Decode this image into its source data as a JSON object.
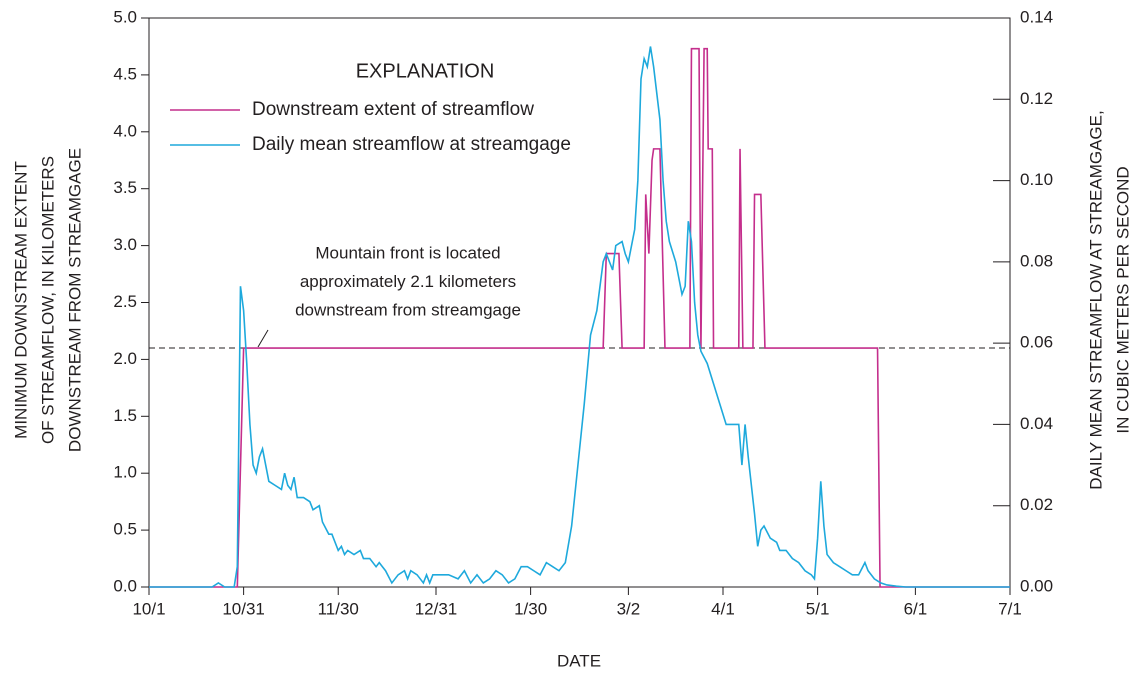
{
  "chart_data": {
    "type": "line",
    "x_label": "DATE",
    "y_label": [
      "MINIMUM DOWNSTREAM EXTENT",
      "OF STREAMFLOW, IN KILOMETERS",
      "DOWNSTREAM FROM STREAMGAGE"
    ],
    "y2_label": [
      "DAILY MEAN STREAMFLOW AT STREAMGAGE,",
      "IN CUBIC METERS PER SECOND"
    ],
    "legend_title": "EXPLANATION",
    "annotation": [
      "Mountain front is located",
      "approximately 2.1 kilometers",
      "downstream from streamgage"
    ],
    "reference_line": 2.1,
    "xlim": [
      0,
      273
    ],
    "xticks": [
      {
        "value": 0,
        "label": "10/1"
      },
      {
        "value": 30,
        "label": "10/31"
      },
      {
        "value": 60,
        "label": "11/30"
      },
      {
        "value": 91,
        "label": "12/31"
      },
      {
        "value": 121,
        "label": "1/30"
      },
      {
        "value": 152,
        "label": "3/2"
      },
      {
        "value": 182,
        "label": "4/1"
      },
      {
        "value": 212,
        "label": "5/1"
      },
      {
        "value": 243,
        "label": "6/1"
      },
      {
        "value": 273,
        "label": "7/1"
      }
    ],
    "ylim": [
      0,
      5
    ],
    "yticks": [
      {
        "value": 0,
        "label": "0.0"
      },
      0.5,
      {
        "value": 1,
        "label": "1.0"
      },
      1.5,
      {
        "value": 2,
        "label": "2.0"
      },
      2.5,
      {
        "value": 3,
        "label": "3.0"
      },
      3.5,
      {
        "value": 4,
        "label": "4.0"
      },
      4.5,
      {
        "value": 5,
        "label": "5.0"
      }
    ],
    "y2lim": [
      0,
      0.14
    ],
    "y2ticks": [
      {
        "value": 0,
        "label": "0.00"
      },
      0.02,
      0.04,
      0.06,
      0.08,
      {
        "value": 0.1,
        "label": "0.10"
      },
      0.12,
      0.14
    ],
    "series": [
      {
        "name": "Downstream extent of streamflow",
        "color": "#c42e8c",
        "axis": "y",
        "x": [
          0,
          28,
          30,
          144,
          145,
          149,
          150,
          157,
          157.5,
          158.5,
          159.5,
          160,
          162,
          163.6,
          171.5,
          172,
          174.4,
          175,
          176,
          177,
          177.3,
          178.6,
          179,
          187,
          187.4,
          188.3,
          191.5,
          192,
          194,
          195.3,
          231,
          231.8,
          273
        ],
        "values": [
          0,
          0,
          2.1,
          2.1,
          2.93,
          2.93,
          2.1,
          2.1,
          3.45,
          2.93,
          3.75,
          3.85,
          3.85,
          2.1,
          2.1,
          4.73,
          4.73,
          2.1,
          4.73,
          4.73,
          3.85,
          3.85,
          2.1,
          2.1,
          3.85,
          2.1,
          2.1,
          3.45,
          3.45,
          2.1,
          2.1,
          0,
          0
        ]
      },
      {
        "name": "Daily mean streamflow at streamgage",
        "color": "#1ea9dc",
        "axis": "y2",
        "x": [
          0,
          20,
          22,
          24,
          27,
          28,
          29,
          30,
          31,
          32,
          33,
          34,
          35,
          36,
          37,
          38,
          40,
          42,
          43,
          44,
          45,
          46,
          47,
          49,
          51,
          52,
          54,
          55,
          57,
          58,
          59,
          60,
          61,
          62,
          63,
          65,
          67,
          68,
          70,
          72,
          73,
          75,
          77,
          79,
          81,
          82,
          83,
          85,
          87,
          88,
          89,
          90,
          92,
          95,
          98,
          100,
          102,
          104,
          106,
          108,
          110,
          112,
          114,
          116,
          118,
          120,
          122,
          124,
          126,
          128,
          130,
          132,
          134,
          136,
          138,
          140,
          142,
          144,
          145,
          147,
          148,
          150,
          151,
          152,
          154,
          155,
          156,
          157,
          158,
          159,
          160,
          162,
          163,
          164,
          165,
          167,
          168,
          169,
          170,
          171,
          172,
          173,
          174,
          175,
          177,
          179,
          181,
          183,
          185,
          187,
          188,
          189,
          190,
          192,
          193,
          194,
          195,
          197,
          199,
          200,
          202,
          204,
          206,
          208,
          210,
          211,
          212,
          213,
          214,
          215,
          217,
          219,
          221,
          223,
          225,
          227,
          228,
          230,
          232,
          234,
          237,
          240,
          273
        ],
        "values": [
          0,
          0,
          0.001,
          0,
          0,
          0.005,
          0.074,
          0.068,
          0.055,
          0.04,
          0.03,
          0.028,
          0.032,
          0.034,
          0.03,
          0.026,
          0.025,
          0.024,
          0.028,
          0.025,
          0.024,
          0.027,
          0.022,
          0.022,
          0.021,
          0.019,
          0.02,
          0.016,
          0.013,
          0.013,
          0.011,
          0.009,
          0.01,
          0.008,
          0.009,
          0.008,
          0.009,
          0.007,
          0.007,
          0.005,
          0.006,
          0.004,
          0.001,
          0.003,
          0.004,
          0.002,
          0.004,
          0.003,
          0.001,
          0.003,
          0.001,
          0.003,
          0.003,
          0.003,
          0.002,
          0.004,
          0.001,
          0.003,
          0.001,
          0.002,
          0.004,
          0.003,
          0.001,
          0.002,
          0.005,
          0.005,
          0.004,
          0.003,
          0.006,
          0.005,
          0.004,
          0.006,
          0.015,
          0.03,
          0.045,
          0.062,
          0.068,
          0.08,
          0.082,
          0.078,
          0.084,
          0.085,
          0.082,
          0.08,
          0.088,
          0.1,
          0.125,
          0.13,
          0.128,
          0.133,
          0.128,
          0.115,
          0.1,
          0.09,
          0.085,
          0.08,
          0.076,
          0.072,
          0.074,
          0.09,
          0.085,
          0.07,
          0.062,
          0.058,
          0.055,
          0.05,
          0.045,
          0.04,
          0.04,
          0.04,
          0.03,
          0.04,
          0.032,
          0.018,
          0.01,
          0.014,
          0.015,
          0.012,
          0.011,
          0.009,
          0.009,
          0.007,
          0.006,
          0.004,
          0.003,
          0.002,
          0.012,
          0.026,
          0.015,
          0.008,
          0.006,
          0.005,
          0.004,
          0.003,
          0.003,
          0.006,
          0.004,
          0.002,
          0.001,
          0.0005,
          0.0002,
          0,
          0
        ]
      }
    ]
  }
}
